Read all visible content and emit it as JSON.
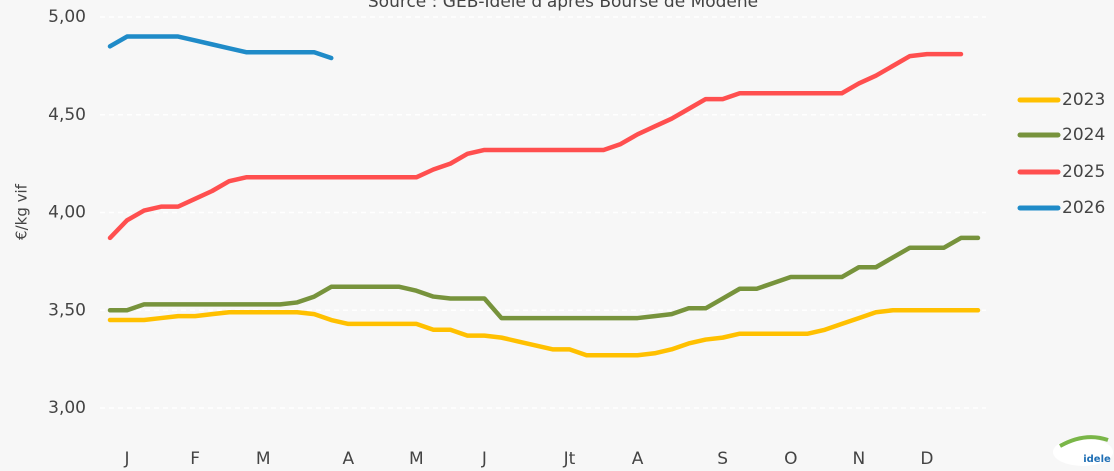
{
  "chart_data": {
    "type": "line",
    "title": "Source : GEB-Idele d'après Bourse de Modène",
    "y_label": "€/kg vif",
    "logo": "idele",
    "categories": [
      null,
      "J",
      null,
      null,
      null,
      "F",
      null,
      null,
      null,
      "M",
      null,
      null,
      null,
      null,
      "A",
      null,
      null,
      null,
      "M",
      null,
      null,
      null,
      "J",
      null,
      null,
      null,
      null,
      "Jt",
      null,
      null,
      null,
      "A",
      null,
      null,
      null,
      null,
      "S",
      null,
      null,
      null,
      "O",
      null,
      null,
      null,
      "N",
      null,
      null,
      null,
      "D",
      null,
      null,
      null
    ],
    "series": [
      {
        "name": "2023",
        "color": "#ffc000",
        "values": [
          3.45,
          3.45,
          3.45,
          3.46,
          3.47,
          3.47,
          3.48,
          3.49,
          3.49,
          3.49,
          3.49,
          3.49,
          3.48,
          3.45,
          3.43,
          3.43,
          3.43,
          3.43,
          3.43,
          3.4,
          3.4,
          3.37,
          3.37,
          3.36,
          3.34,
          3.32,
          3.3,
          3.3,
          3.27,
          3.27,
          3.27,
          3.27,
          3.28,
          3.3,
          3.33,
          3.35,
          3.36,
          3.38,
          3.38,
          3.38,
          3.38,
          3.38,
          3.4,
          3.43,
          3.46,
          3.49,
          3.5,
          3.5,
          3.5,
          3.5,
          3.5,
          3.5
        ]
      },
      {
        "name": "2024",
        "color": "#77933c",
        "values": [
          3.5,
          3.5,
          3.53,
          3.53,
          3.53,
          3.53,
          3.53,
          3.53,
          3.53,
          3.53,
          3.53,
          3.54,
          3.57,
          3.62,
          3.62,
          3.62,
          3.62,
          3.62,
          3.6,
          3.57,
          3.56,
          3.56,
          3.56,
          3.46,
          3.46,
          3.46,
          3.46,
          3.46,
          3.46,
          3.46,
          3.46,
          3.46,
          3.47,
          3.48,
          3.51,
          3.51,
          3.56,
          3.61,
          3.61,
          3.64,
          3.67,
          3.67,
          3.67,
          3.67,
          3.72,
          3.72,
          3.77,
          3.82,
          3.82,
          3.82,
          3.87,
          3.87
        ]
      },
      {
        "name": "2025",
        "color": "#ff4f4f",
        "values": [
          3.87,
          3.96,
          4.01,
          4.03,
          4.03,
          4.07,
          4.11,
          4.16,
          4.18,
          4.18,
          4.18,
          4.18,
          4.18,
          4.18,
          4.18,
          4.18,
          4.18,
          4.18,
          4.18,
          4.22,
          4.25,
          4.3,
          4.32,
          4.32,
          4.32,
          4.32,
          4.32,
          4.32,
          4.32,
          4.32,
          4.35,
          4.4,
          4.44,
          4.48,
          4.53,
          4.58,
          4.58,
          4.61,
          4.61,
          4.61,
          4.61,
          4.61,
          4.61,
          4.61,
          4.66,
          4.7,
          4.75,
          4.8,
          4.81,
          4.81,
          4.81,
          null
        ]
      },
      {
        "name": "2026",
        "color": "#1f8bc8",
        "values": [
          4.85,
          4.9,
          4.9,
          4.9,
          4.9,
          4.88,
          4.86,
          4.84,
          4.82,
          4.82,
          4.82,
          4.82,
          4.82,
          4.79,
          null,
          null,
          null,
          null,
          null,
          null,
          null,
          null,
          null,
          null,
          null,
          null,
          null,
          null,
          null,
          null,
          null,
          null,
          null,
          null,
          null,
          null,
          null,
          null,
          null,
          null,
          null,
          null,
          null,
          null,
          null,
          null,
          null,
          null,
          null,
          null,
          null,
          null
        ]
      }
    ],
    "ylim": [
      3,
      5
    ],
    "yticks": [
      {
        "value": 3,
        "label": "3,00"
      },
      {
        "value": 3.5,
        "label": "3,50"
      },
      {
        "value": 4,
        "label": "4,00"
      },
      {
        "value": 4.5,
        "label": "4,50"
      },
      {
        "value": 5,
        "label": "5,00"
      }
    ],
    "grid": true,
    "legend": "right"
  }
}
